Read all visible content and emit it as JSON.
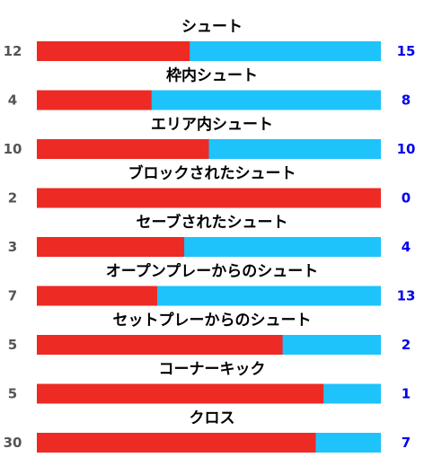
{
  "colors": {
    "home": "#ee2a24",
    "away": "#1ec3fc",
    "away_text": "#0000ee",
    "home_text": "#555555"
  },
  "chart_data": {
    "type": "bar",
    "orientation": "horizontal",
    "stacked": "percent",
    "categories": [
      "シュート",
      "枠内シュート",
      "エリア内シュート",
      "ブロックされたシュート",
      "セーブされたシュート",
      "オープンプレーからのシュート",
      "セットプレーからのシュート",
      "コーナーキック",
      "クロス"
    ],
    "series": [
      {
        "values": [
          12,
          4,
          10,
          2,
          3,
          7,
          5,
          5,
          30
        ]
      },
      {
        "values": [
          15,
          8,
          10,
          0,
          4,
          13,
          2,
          1,
          7
        ]
      }
    ],
    "grid": false,
    "legend": "none"
  }
}
